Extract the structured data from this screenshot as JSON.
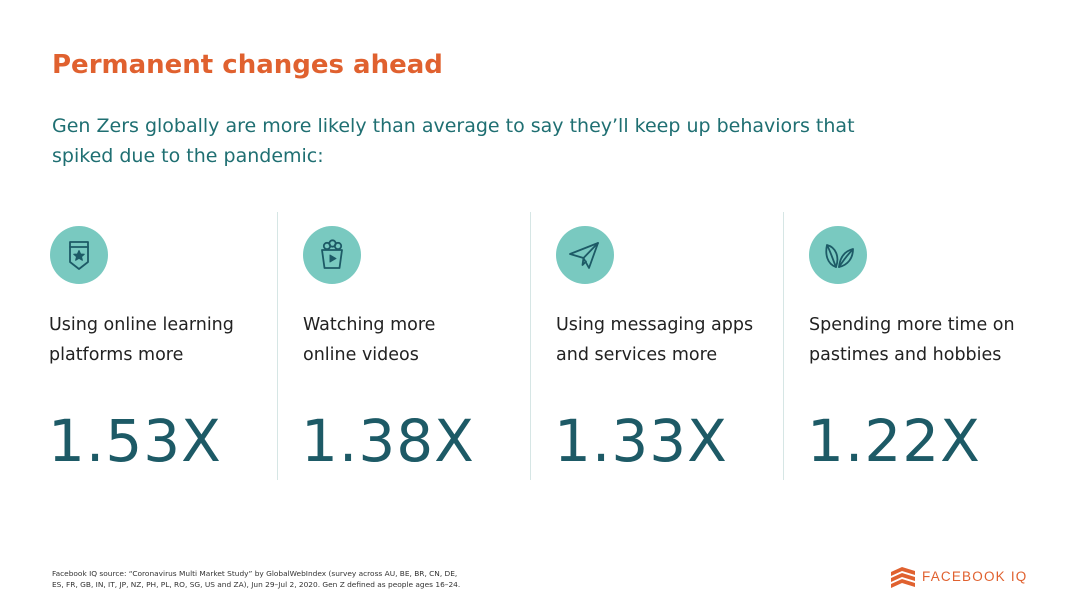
{
  "header": {
    "title": "Permanent changes ahead",
    "subtitle": "Gen Zers globally are more likely than average to say they’ll keep up behaviors that spiked due to the pandemic:"
  },
  "stats": [
    {
      "icon": "badge-star-icon",
      "label_line1": "Using online learning",
      "label_line2": "platforms more",
      "value": "1.53X"
    },
    {
      "icon": "popcorn-play-icon",
      "label_line1": "Watching more",
      "label_line2": "online videos",
      "value": "1.38X"
    },
    {
      "icon": "paper-plane-icon",
      "label_line1": "Using messaging apps",
      "label_line2": "and services more",
      "value": "1.33X"
    },
    {
      "icon": "leaves-icon",
      "label_line1": "Spending more time on",
      "label_line2": "pastimes and hobbies",
      "value": "1.22X"
    }
  ],
  "footnote": {
    "line1": "Facebook IQ source: “Coronavirus Multi Market Study” by GlobalWebIndex (survey across AU, BE, BR, CN, DE,",
    "line2": "ES, FR, GB, IN, IT, JP, NZ, PH, PL, RO, SG, US and ZA), Jun 29–Jul 2, 2020. Gen Z defined as people ages 16–24."
  },
  "brand": {
    "name": "FACEBOOK IQ"
  },
  "colors": {
    "accent": "#e0612f",
    "teal_text": "#1f6f72",
    "stat_value": "#1d5a66",
    "icon_circle": "#79c9c0"
  }
}
